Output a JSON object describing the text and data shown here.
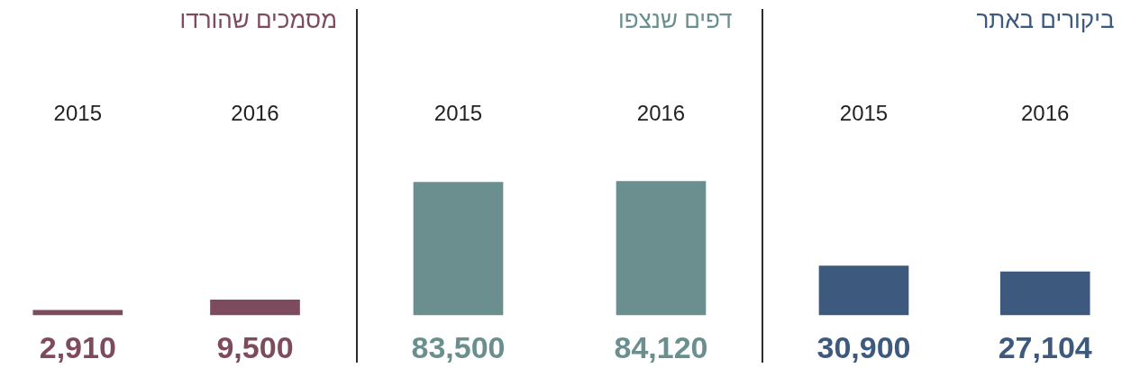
{
  "chart_data": [
    {
      "type": "bar",
      "title": "ביקורים באתר",
      "categories": [
        "2015",
        "2016"
      ],
      "values": [
        30900,
        27104
      ],
      "value_labels": [
        "30,900",
        "27,104"
      ],
      "color": "#3d5a7e",
      "tick_labels": "x"
    },
    {
      "type": "bar",
      "title": "דפים שנצפו",
      "categories": [
        "2015",
        "2016"
      ],
      "values": [
        83500,
        84120
      ],
      "value_labels": [
        "83,500",
        "84,120"
      ],
      "color": "#6b8f8f",
      "tick_labels": "x"
    },
    {
      "type": "bar",
      "title": "מסמכים שהורדו",
      "categories": [
        "2015",
        "2016"
      ],
      "values": [
        2910,
        9500
      ],
      "value_labels": [
        "2,910",
        "9,500"
      ],
      "color": "#7d4b5d",
      "tick_labels": "x"
    }
  ]
}
